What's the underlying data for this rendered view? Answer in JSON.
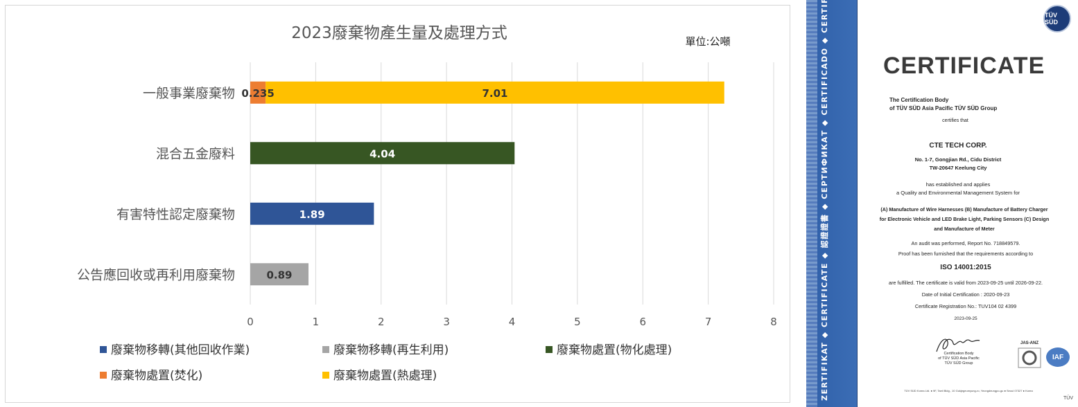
{
  "chart_data": {
    "type": "bar",
    "orientation": "horizontal",
    "stacked": true,
    "title": "2023廢棄物產生量及處理方式",
    "unit_note": "單位:公噸",
    "categories": [
      "一般事業廢棄物",
      "混合五金廢料",
      "有害特性認定廢棄物",
      "公告應回收或再利用廢棄物"
    ],
    "series": [
      {
        "name": "廢棄物移轉(其他回收作業)",
        "color": "#2f5597",
        "values": [
          0,
          0,
          1.89,
          0
        ],
        "label_color": "#ffffff"
      },
      {
        "name": "廢棄物移轉(再生利用)",
        "color": "#a5a5a5",
        "values": [
          0,
          0,
          0,
          0.89
        ],
        "label_color": "#333333"
      },
      {
        "name": "廢棄物處置(物化處理)",
        "color": "#375623",
        "values": [
          0,
          4.04,
          0,
          0
        ],
        "label_color": "#ffffff"
      },
      {
        "name": "廢棄物處置(焚化)",
        "color": "#ed7d31",
        "values": [
          0.235,
          0,
          0,
          0
        ],
        "label_color": "#333333"
      },
      {
        "name": "廢棄物處置(熱處理)",
        "color": "#ffc000",
        "values": [
          7.01,
          0,
          0,
          0
        ],
        "label_color": "#333333"
      }
    ],
    "stack_order": [
      3,
      4,
      2,
      0,
      1
    ],
    "xlim": [
      0,
      8
    ],
    "x_ticks": [
      "0",
      "1",
      "2",
      "3",
      "4",
      "5",
      "6",
      "7",
      "8"
    ],
    "grid": true,
    "legend": "bottom"
  },
  "certificate": {
    "title": "CERTIFICATE",
    "logo_text": "TÜV SÜD",
    "vertical_banner": "ZERTIFIKAT ◆ CERTIFICATE ◆ 認證證書 ◆ СЕРТИФИКАТ ◆ CERTIFICADO ◆ CERTIFICAT",
    "issuer_line1": "The Certification Body",
    "issuer_line2": "of TÜV SÜD Asia Pacific TÜV SÜD Group",
    "certifies": "certifies that",
    "company": "CTE TECH CORP.",
    "address1": "No. 1-7, Gongjian Rd., Cidu District",
    "address2": "TW-20647 Keelung City",
    "established1": "has established and applies",
    "established2": "a Quality and Environmental Management System for",
    "scope1": "(A) Manufacture of Wire Harnesses (B) Manufacture of Battery Charger",
    "scope2": "for Electronic Vehicle and  LED Brake Light, Parking Sensors (C) Design",
    "scope3": "and Manufacture of Meter",
    "audit": "An audit was performed, Report No. 718849579.",
    "proof": "Proof has been furnished that the requirements according to",
    "standard": "ISO 14001:2015",
    "validity": "are fulfilled. The certificate is valid from 2023-09-25 until 2026-09-22.",
    "initial": "Date of Initial Certification : 2020-09-23",
    "registration": "Certificate Registration No.: TUV104 02 4399",
    "date": "2023-09-25",
    "sig_caption1": "Certification Body",
    "sig_caption2": "of TÜV SÜD Asia Pacific",
    "sig_caption3": "TÜV SÜD Group",
    "jas_anz": "JAS-ANZ",
    "iaf": "IAF",
    "footer": "TÜV SÜD Korea Ltd. ● 9F, Taeil Bldg., 10 Gukjegeumyung-ro, Yeongdeungpo-gu ● Seoul 07327 ● Korea",
    "corner": "TÜV"
  }
}
